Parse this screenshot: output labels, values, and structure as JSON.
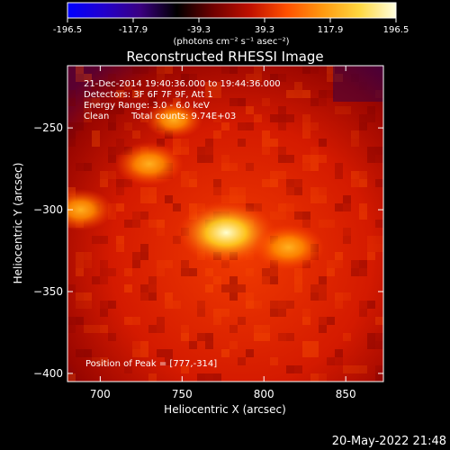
{
  "colorbar": {
    "ticks": [
      "-196.5",
      "-117.9",
      "-39.3",
      "39.3",
      "117.9",
      "196.5"
    ],
    "range": [
      -196.5,
      196.5
    ],
    "unit_label": "(photons cm⁻² s⁻¹ asec⁻²)",
    "colormap": [
      "#0000ff",
      "#2200cc",
      "#3a0080",
      "#000000",
      "#700000",
      "#c01000",
      "#ff5000",
      "#ff9a10",
      "#ffd840",
      "#ffffe0"
    ]
  },
  "chart_data": {
    "type": "heatmap",
    "title": "Reconstructed RHESSI Image",
    "xlabel": "Heliocentric X (arcsec)",
    "ylabel": "Heliocentric Y (arcsec)",
    "xlim": [
      680,
      873
    ],
    "ylim": [
      -405,
      -212
    ],
    "xticks": [
      700,
      750,
      800,
      850
    ],
    "yticks": [
      -250,
      -300,
      -350,
      -400
    ],
    "peak_position": [
      777,
      -314
    ],
    "sources": [
      {
        "x": 777,
        "y": -314,
        "level": 1.0
      },
      {
        "x": 730,
        "y": -272,
        "level": 0.55
      },
      {
        "x": 815,
        "y": -323,
        "level": 0.6
      },
      {
        "x": 688,
        "y": -300,
        "level": 0.5
      },
      {
        "x": 745,
        "y": -245,
        "level": 0.4
      }
    ]
  },
  "annotations": {
    "time_range": "21-Dec-2014 19:40:36.000 to 19:44:36.000",
    "detectors": "Detectors: 3F 6F 7F 9F, Att 1",
    "energy_range": "Energy Range: 3.0 - 6.0 keV",
    "method": "Clean",
    "total_counts": "Total counts: 9.74E+03",
    "peak_position_text": "Position of Peak = [777,-314]"
  },
  "footer": {
    "timestamp": "20-May-2022 21:48"
  }
}
